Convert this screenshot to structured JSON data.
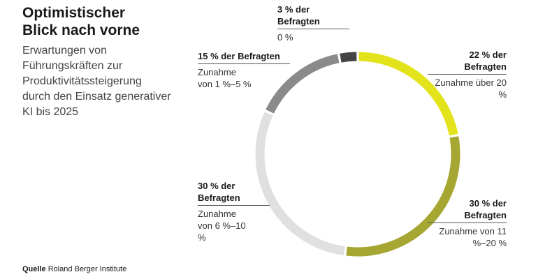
{
  "chart_data": {
    "type": "donut",
    "title": "Optimistischer Blick nach vorne",
    "subtitle": "Erwartungen von Führungskräften zur Produktivitätssteigerung durch den Einsatz generativer KI bis 2025",
    "source_label": "Quelle",
    "source": "Roland Berger Institute",
    "categories": [
      "Zunahme über 20 %",
      "Zunahme von 11 %–20 %",
      "Zunahme von 6 %–10 %",
      "Zunahme von 1 %–5 %",
      "0 %"
    ],
    "values": [
      22,
      30,
      30,
      15,
      3
    ],
    "value_labels": [
      "22 % der Befragten",
      "30 % der Befragten",
      "30 % der Befragten",
      "15 % der Befragten",
      "3 % der Befragten"
    ],
    "colors": [
      "#e3e31c",
      "#a6a632",
      "#e0e0e0",
      "#8a8a8a",
      "#444444"
    ]
  }
}
